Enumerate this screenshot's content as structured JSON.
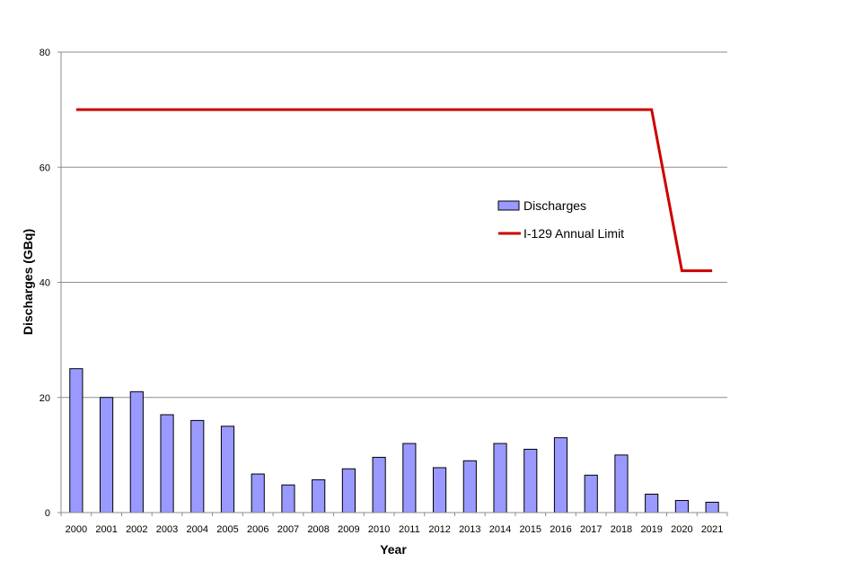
{
  "chart_data": {
    "type": "bar",
    "title": "",
    "xlabel": "Year",
    "ylabel": "Discharges (GBq)",
    "ylim": [
      0,
      80
    ],
    "yticks": [
      0,
      20,
      40,
      60,
      80
    ],
    "grid": "horizontal",
    "legend_position": "right-center",
    "categories": [
      "2000",
      "2001",
      "2002",
      "2003",
      "2004",
      "2005",
      "2006",
      "2007",
      "2008",
      "2009",
      "2010",
      "2011",
      "2012",
      "2013",
      "2014",
      "2015",
      "2016",
      "2017",
      "2018",
      "2019",
      "2020",
      "2021"
    ],
    "series": [
      {
        "name": "Discharges",
        "type": "bar",
        "color": "#9999ff",
        "values": [
          25,
          20,
          21,
          17,
          16,
          15,
          6.7,
          4.8,
          5.7,
          7.6,
          9.6,
          12,
          7.8,
          9,
          12,
          11,
          13,
          6.5,
          10,
          3.2,
          2.1,
          1.8
        ]
      },
      {
        "name": "I-129 Annual Limit",
        "type": "line",
        "color": "#cc0000",
        "values": [
          70,
          70,
          70,
          70,
          70,
          70,
          70,
          70,
          70,
          70,
          70,
          70,
          70,
          70,
          70,
          70,
          70,
          70,
          70,
          70,
          42,
          42
        ]
      }
    ]
  }
}
